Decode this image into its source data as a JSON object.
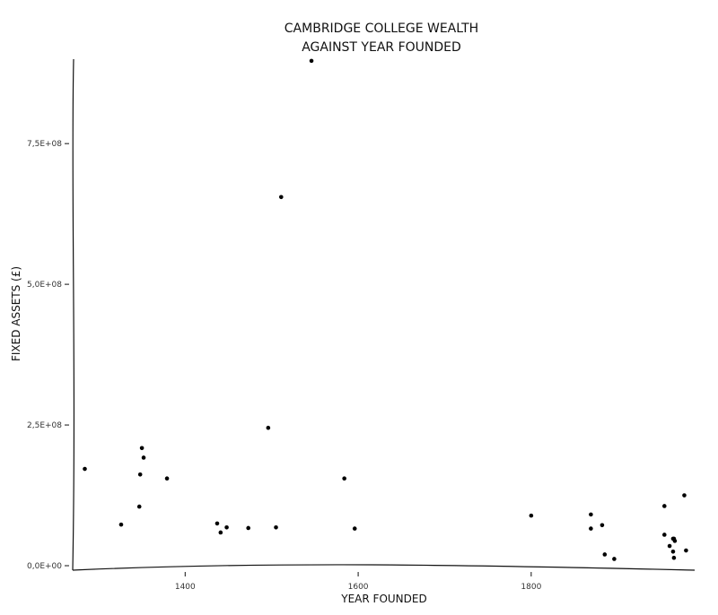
{
  "chart_data": {
    "type": "scatter",
    "title_lines": [
      "CAMBRIDGE COLLEGE WEALTH",
      "AGAINST YEAR FOUNDED"
    ],
    "xlabel": "YEAR FOUNDED",
    "ylabel": "FIXED ASSETS (£)",
    "xlim": [
      1270,
      1990
    ],
    "ylim": [
      0,
      900000000
    ],
    "xticks": [
      1400,
      1600,
      1800
    ],
    "xtick_labels": [
      "1400",
      "1600",
      "1800"
    ],
    "yticks": [
      0,
      250000000,
      500000000,
      750000000
    ],
    "ytick_labels": [
      "0,0E+00",
      "2,5E+08",
      "5,0E+08",
      "7,5E+08"
    ],
    "grid": false,
    "legend": "none",
    "point_color": "#000000",
    "x": [
      1284,
      1326,
      1347,
      1348,
      1350,
      1352,
      1379,
      1437,
      1441,
      1448,
      1473,
      1496,
      1505,
      1511,
      1546,
      1584,
      1596,
      1800,
      1869,
      1869,
      1882,
      1885,
      1896,
      1954,
      1954,
      1960,
      1964,
      1964,
      1965,
      1965,
      1966,
      1977,
      1979
    ],
    "y": [
      172000000,
      73000000,
      105000000,
      162000000,
      209000000,
      192000000,
      155000000,
      75000000,
      59000000,
      68000000,
      67000000,
      245000000,
      68000000,
      655000000,
      897000000,
      155000000,
      66000000,
      89000000,
      91000000,
      66000000,
      72000000,
      20000000,
      12000000,
      55000000,
      106000000,
      35000000,
      48000000,
      25000000,
      48000000,
      14000000,
      44000000,
      125000000,
      27000000
    ]
  }
}
